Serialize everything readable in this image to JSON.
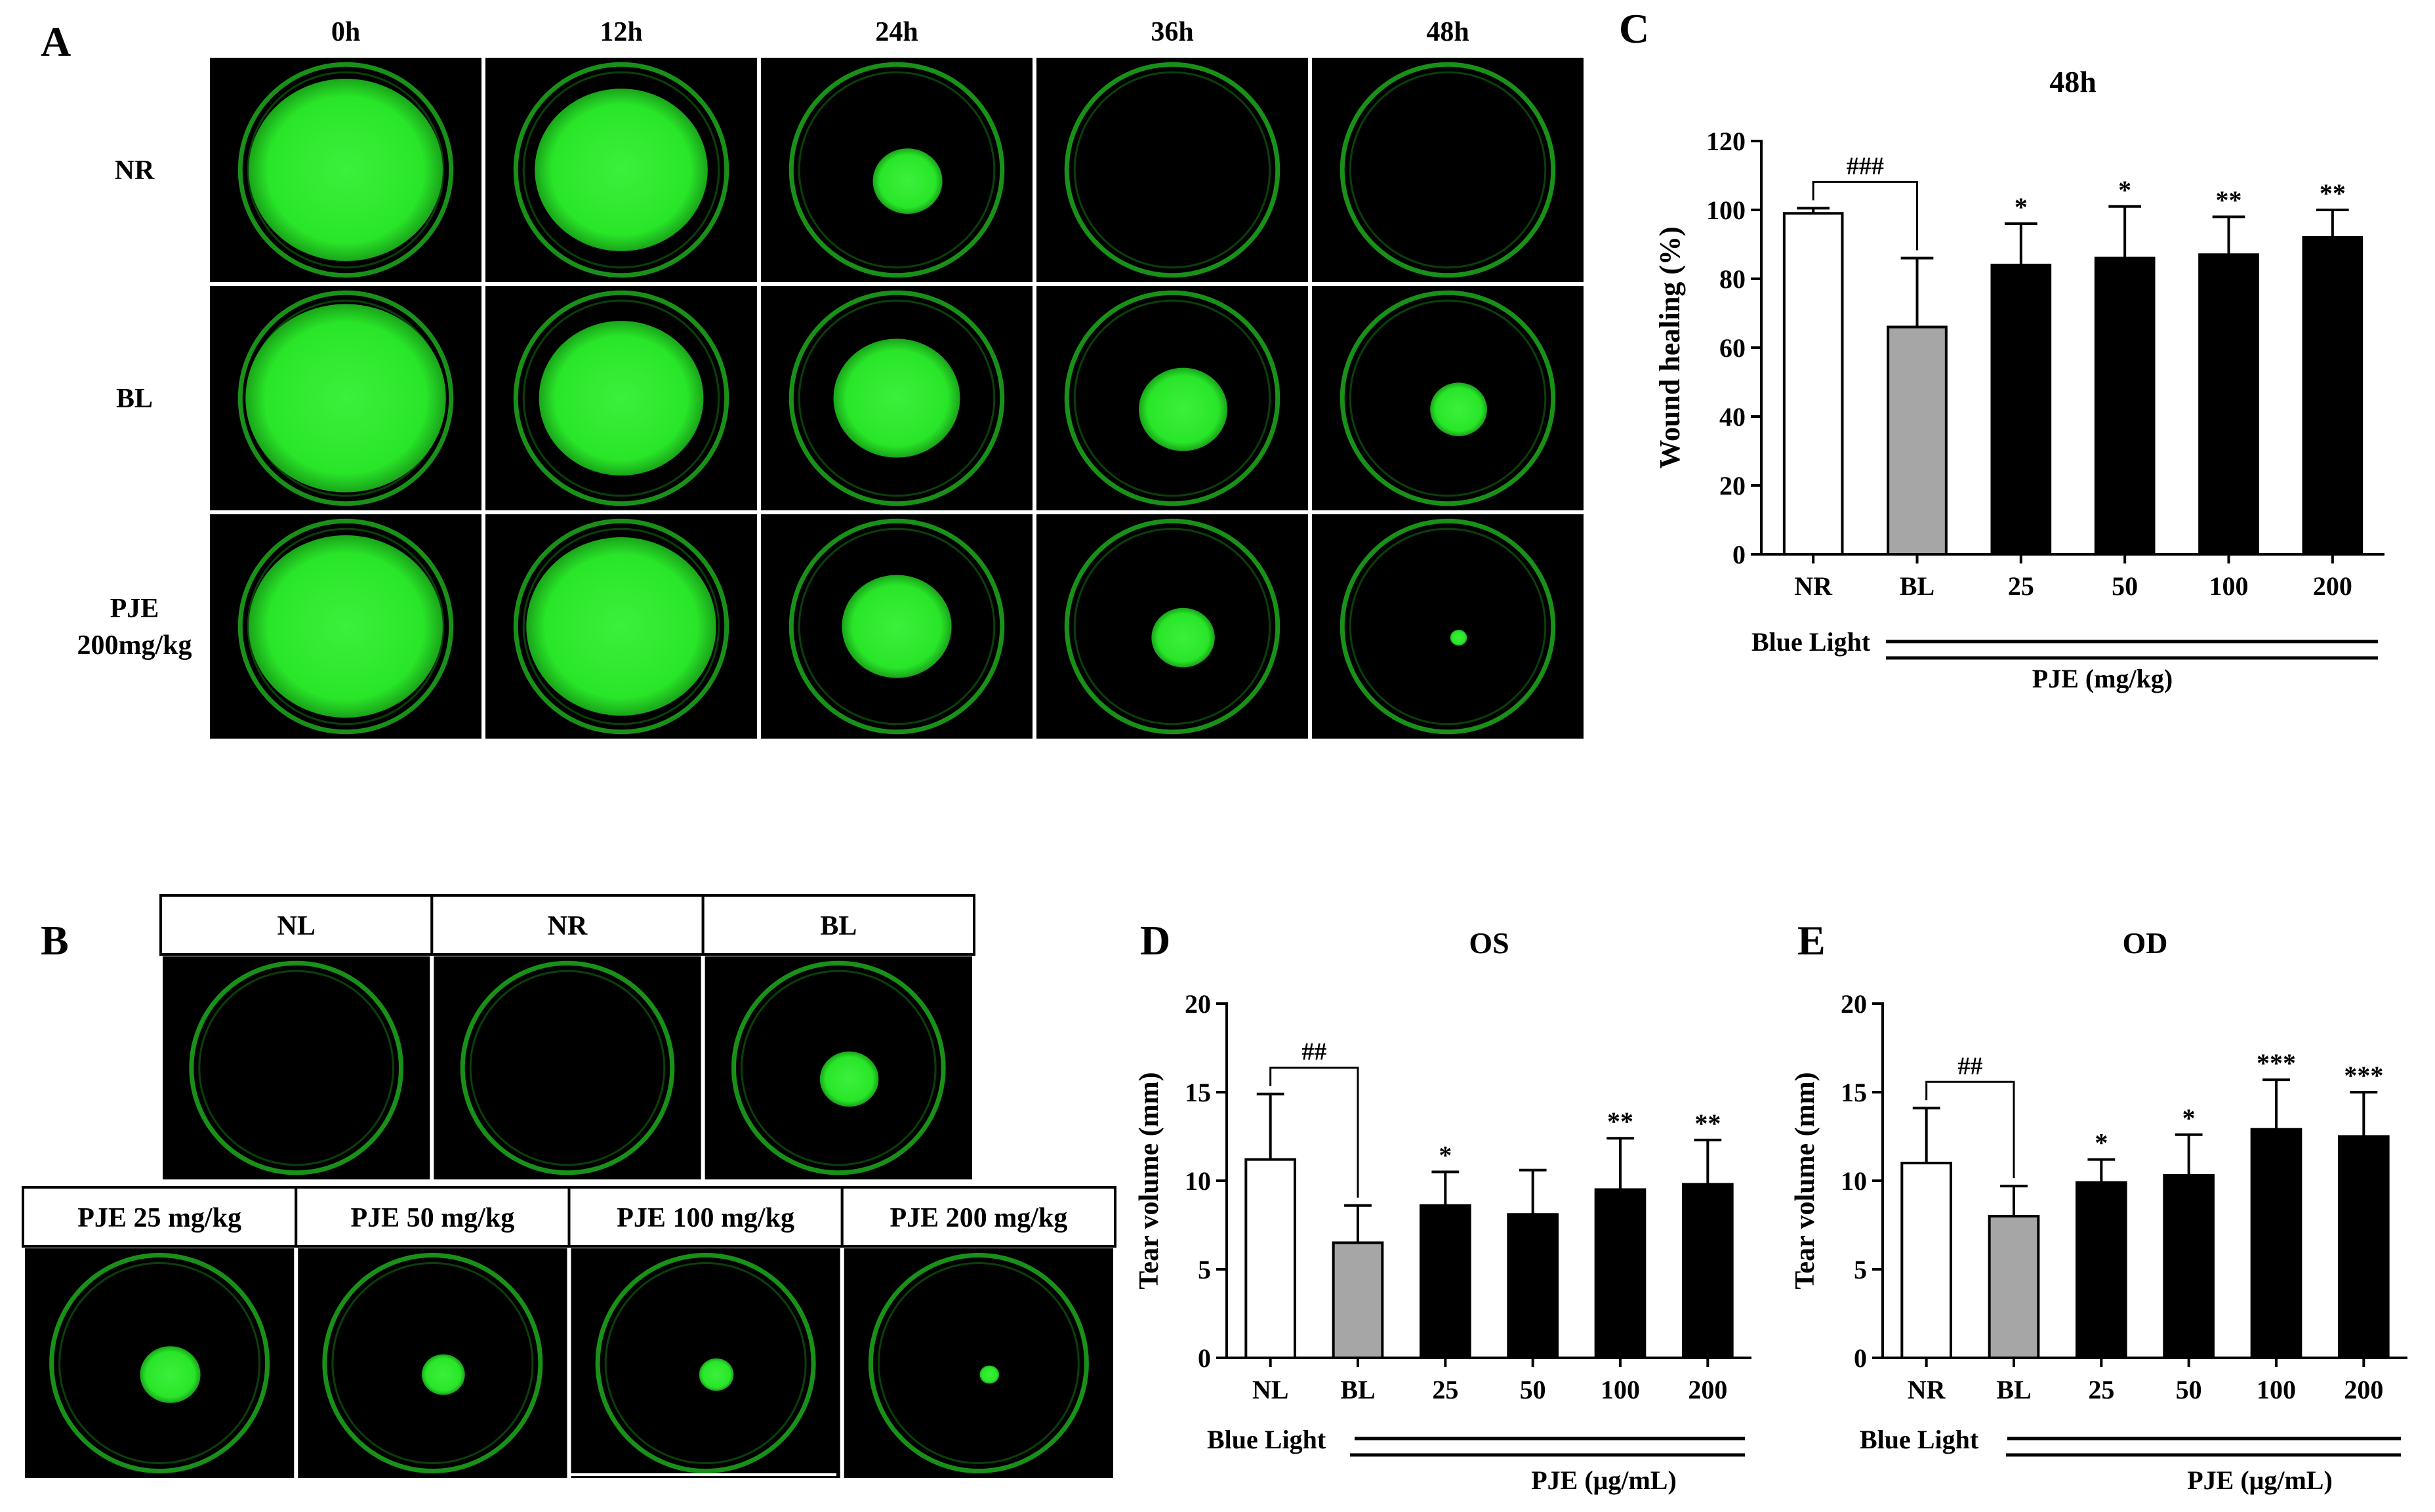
{
  "panels": {
    "a": {
      "letter": "A",
      "time_labels": [
        "0h",
        "12h",
        "24h",
        "36h",
        "48h"
      ],
      "row_labels": [
        [
          "NR"
        ],
        [
          "BL"
        ],
        [
          "PJE",
          "200mg/kg"
        ]
      ],
      "spot_size": [
        [
          0.92,
          0.82,
          0.33,
          0.0,
          0.0
        ],
        [
          0.95,
          0.78,
          0.6,
          0.42,
          0.27
        ],
        [
          0.92,
          0.9,
          0.52,
          0.3,
          0.08
        ]
      ]
    },
    "b": {
      "letter": "B",
      "top_labels": [
        "NL",
        "NR",
        "BL"
      ],
      "bottom_labels": [
        "PJE 25 mg/kg",
        "PJE 50 mg/kg",
        "PJE 100 mg/kg",
        "PJE 200 mg/kg"
      ],
      "top_spot_size": [
        0.0,
        0.0,
        0.28
      ],
      "bottom_spot_size": [
        0.28,
        0.2,
        0.16,
        0.09
      ]
    }
  },
  "colors": {
    "fluorescence": "#29e629",
    "ring": "#1fb51f",
    "background": "#000000",
    "bl_bar": "#a6a6a6",
    "pje_bar": "#000000",
    "nr_bar": "#ffffff"
  },
  "chart_data": [
    {
      "panel": "C",
      "type": "bar",
      "title": "48h",
      "ylabel": "Wound healing (%)",
      "xlabel": "",
      "categories": [
        "NR",
        "BL",
        "25",
        "50",
        "100",
        "200"
      ],
      "values": [
        99,
        66,
        84,
        86,
        87,
        92
      ],
      "errors": [
        1.5,
        20,
        12,
        15,
        11,
        8
      ],
      "bar_colors": [
        "#ffffff",
        "#a6a6a6",
        "#000000",
        "#000000",
        "#000000",
        "#000000"
      ],
      "ylim": [
        0,
        120
      ],
      "yticks": [
        0,
        20,
        40,
        60,
        80,
        100,
        120
      ],
      "significance": [
        "",
        "",
        "*",
        "*",
        "**",
        "**"
      ],
      "comparison": {
        "from": 0,
        "to": 1,
        "label": "###"
      },
      "group_lines": [
        {
          "label": "Blue Light",
          "from": 1,
          "to": 5
        },
        {
          "label": "PJE (mg/kg)",
          "from": 2,
          "to": 5
        }
      ]
    },
    {
      "panel": "D",
      "type": "bar",
      "title": "OS",
      "ylabel": "Tear volume (mm)",
      "xlabel": "",
      "categories": [
        "NL",
        "BL",
        "25",
        "50",
        "100",
        "200"
      ],
      "values": [
        11.2,
        6.5,
        8.6,
        8.1,
        9.5,
        9.8
      ],
      "errors": [
        3.7,
        2.1,
        1.9,
        2.5,
        2.9,
        2.5
      ],
      "bar_colors": [
        "#ffffff",
        "#a6a6a6",
        "#000000",
        "#000000",
        "#000000",
        "#000000"
      ],
      "ylim": [
        0,
        20
      ],
      "yticks": [
        0,
        5,
        10,
        15,
        20
      ],
      "significance": [
        "",
        "",
        "*",
        "",
        "**",
        "**"
      ],
      "comparison": {
        "from": 0,
        "to": 1,
        "label": "##"
      },
      "group_lines": [
        {
          "label": "Blue Light",
          "from": 1,
          "to": 5
        },
        {
          "label": "PJE (μg/mL)",
          "from": 2,
          "to": 5
        }
      ]
    },
    {
      "panel": "E",
      "type": "bar",
      "title": "OD",
      "ylabel": "Tear volume (mm)",
      "xlabel": "",
      "categories": [
        "NR",
        "BL",
        "25",
        "50",
        "100",
        "200"
      ],
      "values": [
        11.0,
        8.0,
        9.9,
        10.3,
        12.9,
        12.5
      ],
      "errors": [
        3.1,
        1.7,
        1.3,
        2.3,
        2.8,
        2.5
      ],
      "bar_colors": [
        "#ffffff",
        "#a6a6a6",
        "#000000",
        "#000000",
        "#000000",
        "#000000"
      ],
      "ylim": [
        0,
        20
      ],
      "yticks": [
        0,
        5,
        10,
        15,
        20
      ],
      "significance": [
        "",
        "",
        "*",
        "*",
        "***",
        "***"
      ],
      "comparison": {
        "from": 0,
        "to": 1,
        "label": "##"
      },
      "group_lines": [
        {
          "label": "Blue Light",
          "from": 1,
          "to": 5
        },
        {
          "label": "PJE (μg/mL)",
          "from": 2,
          "to": 5
        }
      ]
    }
  ]
}
